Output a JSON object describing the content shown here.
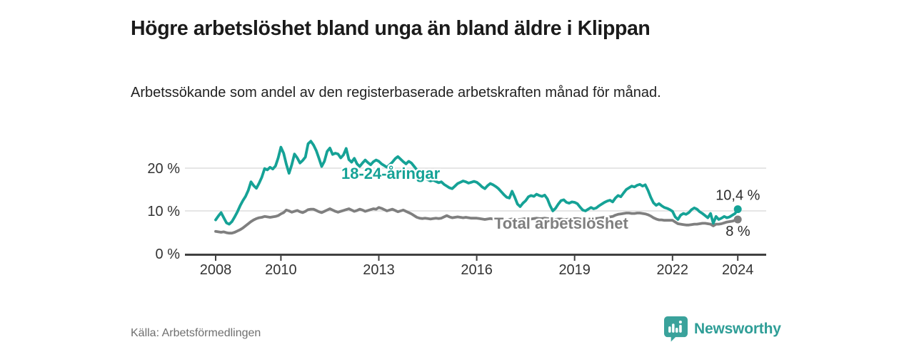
{
  "header": {
    "title": "Högre arbetslöshet bland unga än bland äldre i Klippan",
    "subtitle": "Arbetssökande som andel av den registerbaserade arbetskraften månad för månad."
  },
  "footer": {
    "source": "Källa: Arbetsförmedlingen",
    "brand_name": "Newsworthy"
  },
  "colors": {
    "young_line": "#15a296",
    "total_line": "#7f7f7f",
    "brand_teal": "#2f9e97",
    "grid": "#d8d8d8",
    "axis": "#404040",
    "axis_text": "#333333",
    "value_label_text": "#2b2b2b"
  },
  "chart_data": {
    "type": "line",
    "title": "Högre arbetslöshet bland unga än bland äldre i Klippan",
    "x_unit": "month",
    "x_start": "2008-01",
    "x_end": "2024-01",
    "x_tick_years": [
      2008,
      2010,
      2013,
      2016,
      2019,
      2022,
      2024
    ],
    "y_tick_values": [
      0,
      10,
      20
    ],
    "y_tick_labels": [
      "0 %",
      "10 %",
      "20 %"
    ],
    "y_gridline_values": [
      10,
      20
    ],
    "ylim": [
      0,
      28
    ],
    "grid": "horizontal",
    "legend": "inline-labels",
    "series": [
      {
        "name": "18-24-åringar",
        "color": "#15a296",
        "end_value": 10.4,
        "end_label": "10,4 %",
        "values": [
          7.9,
          8.8,
          9.6,
          8.4,
          7.2,
          6.9,
          7.5,
          8.6,
          9.8,
          11.2,
          12.4,
          13.4,
          14.8,
          16.8,
          15.9,
          15.3,
          16.5,
          17.9,
          19.9,
          19.6,
          20.2,
          19.8,
          20.5,
          22.4,
          24.9,
          23.5,
          20.9,
          18.8,
          20.8,
          23.3,
          22.4,
          21.2,
          21.8,
          22.6,
          25.7,
          26.3,
          25.4,
          24.1,
          22.3,
          20.4,
          21.6,
          23.9,
          24.7,
          23.2,
          23.5,
          23.3,
          22.4,
          23.1,
          24.6,
          22.0,
          21.4,
          22.3,
          21.0,
          20.4,
          21.2,
          21.9,
          21.3,
          20.8,
          21.5,
          21.9,
          21.6,
          21.0,
          20.6,
          20.2,
          20.8,
          21.4,
          22.2,
          22.7,
          22.1,
          21.5,
          21.0,
          21.6,
          21.2,
          20.4,
          19.6,
          18.9,
          18.2,
          17.6,
          17.3,
          17.0,
          17.2,
          16.9,
          16.6,
          16.8,
          16.2,
          15.8,
          15.4,
          15.2,
          15.8,
          16.4,
          16.7,
          17.0,
          16.8,
          16.5,
          16.7,
          16.9,
          16.7,
          16.2,
          15.6,
          15.2,
          15.9,
          16.4,
          16.1,
          15.7,
          15.2,
          14.5,
          13.8,
          13.2,
          13.0,
          14.6,
          13.2,
          11.6,
          11.0,
          11.8,
          12.4,
          13.3,
          13.6,
          13.4,
          13.9,
          13.6,
          13.4,
          13.7,
          12.8,
          11.2,
          10.0,
          10.6,
          11.6,
          12.4,
          12.6,
          12.0,
          11.8,
          12.1,
          12.0,
          11.7,
          10.9,
          10.2,
          10.0,
          10.4,
          10.8,
          10.5,
          10.7,
          11.2,
          11.6,
          12.0,
          12.3,
          12.5,
          12.1,
          13.0,
          13.6,
          13.3,
          14.2,
          15.0,
          15.4,
          15.8,
          15.6,
          16.0,
          16.2,
          15.8,
          16.1,
          14.8,
          13.2,
          11.9,
          11.3,
          11.7,
          11.2,
          10.8,
          10.6,
          10.3,
          9.9,
          8.6,
          8.0,
          9.0,
          9.4,
          9.2,
          9.6,
          10.3,
          10.7,
          10.4,
          9.8,
          9.4,
          8.9,
          8.4,
          9.4,
          7.1,
          8.7,
          8.0,
          8.3,
          8.7,
          8.4,
          8.6,
          9.0,
          9.4,
          10.4
        ]
      },
      {
        "name": "Total arbetslöshet",
        "color": "#7f7f7f",
        "end_value": 8.0,
        "end_label": "8 %",
        "values": [
          5.2,
          5.1,
          5.0,
          5.1,
          4.9,
          4.8,
          4.8,
          5.0,
          5.3,
          5.6,
          6.0,
          6.5,
          7.0,
          7.5,
          7.9,
          8.2,
          8.4,
          8.5,
          8.7,
          8.6,
          8.5,
          8.6,
          8.7,
          8.9,
          9.3,
          9.6,
          10.2,
          10.0,
          9.7,
          9.9,
          10.1,
          9.8,
          9.6,
          9.9,
          10.3,
          10.4,
          10.4,
          10.1,
          9.8,
          9.6,
          9.9,
          10.2,
          10.5,
          10.2,
          9.9,
          9.7,
          9.9,
          10.1,
          10.3,
          10.5,
          10.2,
          9.9,
          10.1,
          10.4,
          10.2,
          9.9,
          10.1,
          10.3,
          10.5,
          10.4,
          10.8,
          10.6,
          10.3,
          10.0,
          10.2,
          10.4,
          10.1,
          9.8,
          10.0,
          10.2,
          9.9,
          9.6,
          9.3,
          8.9,
          8.5,
          8.3,
          8.2,
          8.3,
          8.2,
          8.1,
          8.2,
          8.3,
          8.2,
          8.3,
          8.6,
          8.9,
          8.6,
          8.4,
          8.5,
          8.6,
          8.5,
          8.4,
          8.5,
          8.4,
          8.3,
          8.3,
          8.3,
          8.2,
          8.1,
          8.0,
          8.1,
          8.2,
          8.1,
          8.0,
          7.9,
          7.8,
          7.9,
          7.9,
          8.0,
          8.1,
          8.0,
          7.9,
          8.0,
          8.1,
          8.2,
          8.2,
          8.1,
          8.2,
          8.3,
          8.2,
          8.2,
          8.3,
          8.2,
          8.1,
          8.0,
          8.0,
          8.1,
          8.1,
          8.0,
          8.0,
          8.1,
          8.1,
          8.2,
          8.2,
          8.1,
          8.0,
          8.1,
          8.2,
          8.3,
          8.3,
          8.2,
          8.3,
          8.4,
          8.5,
          8.5,
          8.6,
          8.7,
          9.0,
          9.2,
          9.3,
          9.4,
          9.5,
          9.5,
          9.4,
          9.4,
          9.5,
          9.5,
          9.4,
          9.3,
          9.1,
          8.8,
          8.4,
          8.1,
          7.9,
          7.9,
          7.8,
          7.8,
          7.8,
          7.8,
          7.4,
          7.0,
          6.9,
          6.8,
          6.7,
          6.7,
          6.8,
          6.9,
          6.9,
          7.0,
          7.1,
          7.1,
          7.0,
          6.9,
          6.5,
          6.9,
          6.9,
          7.0,
          7.2,
          7.4,
          7.5,
          7.6,
          7.8,
          8.0
        ]
      }
    ]
  }
}
